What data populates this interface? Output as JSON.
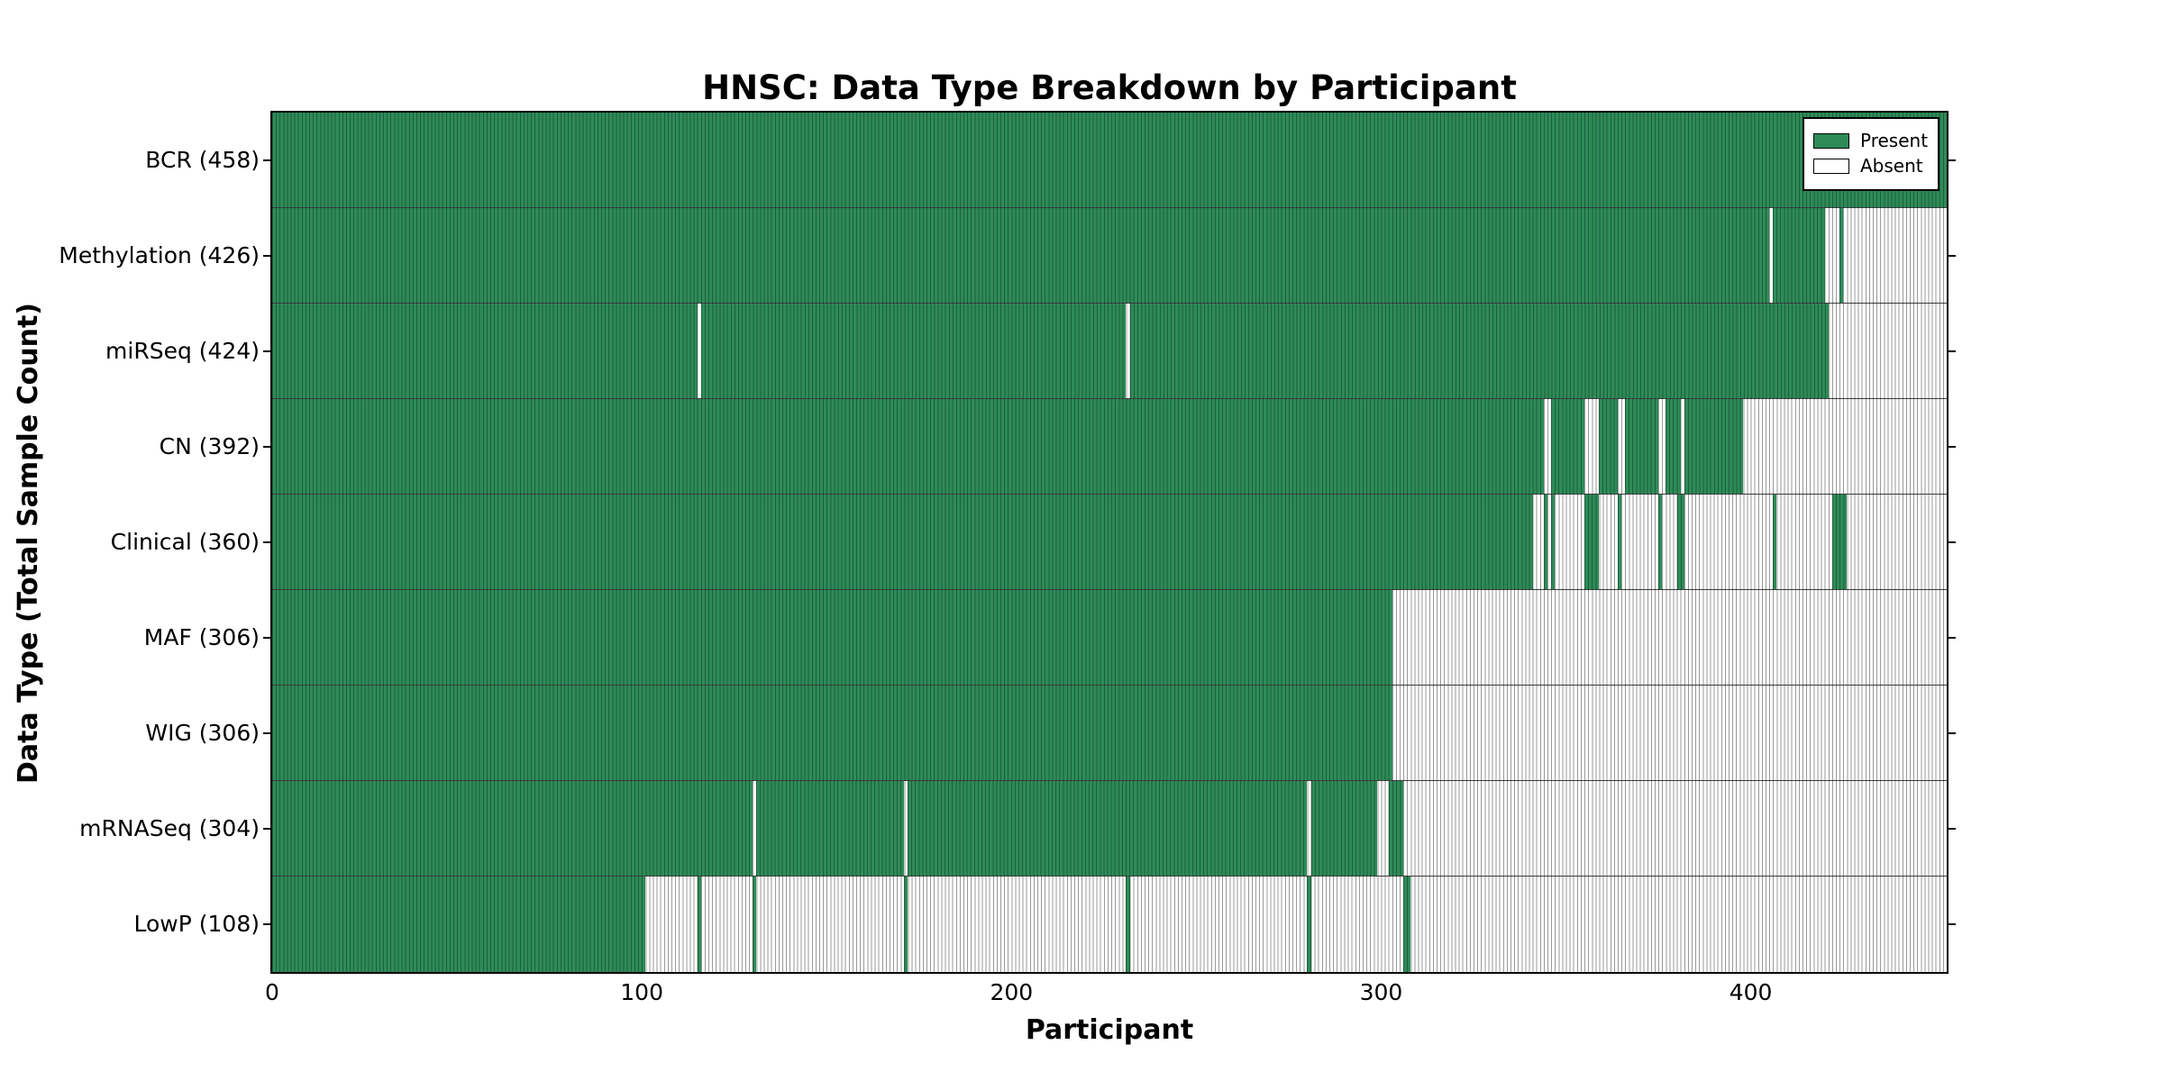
{
  "chart_data": {
    "type": "heatmap",
    "title": "HNSC: Data Type Breakdown by Participant",
    "xlabel": "Participant",
    "ylabel": "Data Type (Total Sample Count)",
    "xlim": [
      0,
      453
    ],
    "x_ticks": [
      0,
      100,
      200,
      300,
      400
    ],
    "grid": false,
    "legend_position": "upper right",
    "legend": [
      {
        "label": "Present",
        "color": "#2e8b57",
        "edge": "#000000"
      },
      {
        "label": "Absent",
        "color": "#ffffff",
        "edge": "#000000"
      }
    ],
    "colors": {
      "present_fill": "#2e8b57",
      "present_edge": "#1c5f3d",
      "absent_fill": "#ffffff",
      "absent_edge": "#999999",
      "row_divider": "#1a1a1a",
      "plot_border": "#000000"
    },
    "rows": [
      {
        "label": "BCR (458)",
        "data_type": "BCR",
        "total_samples": 458,
        "present_ranges": [
          [
            0,
            452
          ]
        ]
      },
      {
        "label": "Methylation (426)",
        "data_type": "Methylation",
        "total_samples": 426,
        "present_ranges": [
          [
            0,
            404
          ],
          [
            406,
            419
          ],
          [
            424,
            424
          ]
        ]
      },
      {
        "label": "miRSeq (424)",
        "data_type": "miRSeq",
        "total_samples": 424,
        "present_ranges": [
          [
            0,
            114
          ],
          [
            116,
            230
          ],
          [
            232,
            420
          ]
        ]
      },
      {
        "label": "CN (392)",
        "data_type": "CN",
        "total_samples": 392,
        "present_ranges": [
          [
            0,
            343
          ],
          [
            346,
            354
          ],
          [
            359,
            363
          ],
          [
            366,
            374
          ],
          [
            377,
            380
          ],
          [
            382,
            397
          ]
        ]
      },
      {
        "label": "Clinical (360)",
        "data_type": "Clinical",
        "total_samples": 360,
        "present_ranges": [
          [
            0,
            340
          ],
          [
            344,
            344
          ],
          [
            346,
            346
          ],
          [
            355,
            358
          ],
          [
            364,
            364
          ],
          [
            375,
            375
          ],
          [
            380,
            381
          ],
          [
            406,
            406
          ],
          [
            422,
            425
          ]
        ]
      },
      {
        "label": "MAF (306)",
        "data_type": "MAF",
        "total_samples": 306,
        "present_ranges": [
          [
            0,
            302
          ]
        ]
      },
      {
        "label": "WIG (306)",
        "data_type": "WIG",
        "total_samples": 306,
        "present_ranges": [
          [
            0,
            302
          ]
        ]
      },
      {
        "label": "mRNASeq (304)",
        "data_type": "mRNASeq",
        "total_samples": 304,
        "present_ranges": [
          [
            0,
            129
          ],
          [
            131,
            170
          ],
          [
            172,
            279
          ],
          [
            281,
            298
          ],
          [
            302,
            305
          ]
        ]
      },
      {
        "label": "LowP (108)",
        "data_type": "LowP",
        "total_samples": 108,
        "present_ranges": [
          [
            0,
            100
          ],
          [
            115,
            115
          ],
          [
            130,
            130
          ],
          [
            171,
            171
          ],
          [
            231,
            231
          ],
          [
            280,
            280
          ],
          [
            306,
            307
          ]
        ]
      }
    ]
  }
}
